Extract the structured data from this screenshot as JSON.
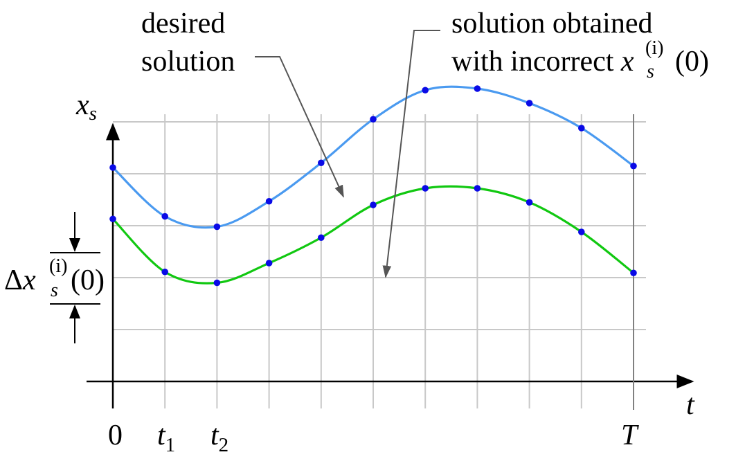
{
  "labels": {
    "y_axis": "x",
    "y_axis_sub": "s",
    "x_axis": "t",
    "origin": "0",
    "t1_base": "t",
    "t1_sub": "1",
    "t2_base": "t",
    "t2_sub": "2",
    "t_end": "T",
    "desired_line1": "desired",
    "desired_line2": "solution",
    "obtained_line1": "solution obtained",
    "obtained_line2_text": "with incorrect ",
    "obtained_var": "x",
    "obtained_sub": "s",
    "obtained_sup": "(i)",
    "obtained_arg": "(0)",
    "delta_symbol": "Δ",
    "delta_var": "x",
    "delta_sub": "s",
    "delta_sup": "(i)",
    "delta_arg": "(0)"
  },
  "colors": {
    "desired_curve": "#4a9af0",
    "obtained_curve": "#11c811",
    "sample_points": "#0a0ae6",
    "grid": "#c8c8c8",
    "axis": "#000000",
    "annotation_arrow": "#555555"
  },
  "series": [
    {
      "role": "desired-solution",
      "values": [
        4.12,
        3.18,
        2.98,
        3.47,
        4.21,
        5.05,
        5.61,
        5.64,
        5.36,
        4.88,
        4.15
      ]
    },
    {
      "role": "obtained-solution",
      "values": [
        3.13,
        2.11,
        1.9,
        2.28,
        2.77,
        3.4,
        3.72,
        3.72,
        3.45,
        2.88,
        2.09
      ]
    }
  ],
  "sample_count": 11,
  "y_range": [
    0,
    6
  ]
}
